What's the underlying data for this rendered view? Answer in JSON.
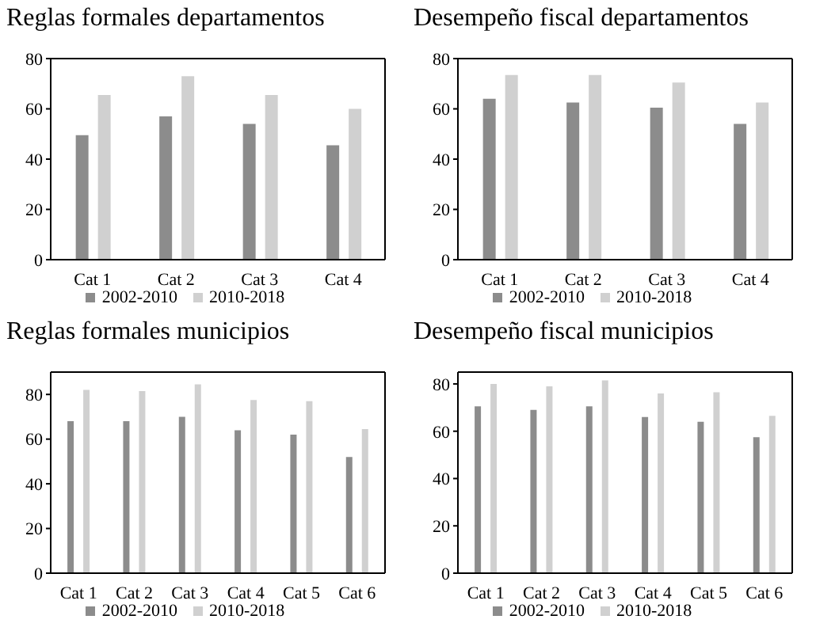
{
  "chart_data": [
    {
      "type": "bar",
      "title": "Reglas formales departamentos",
      "categories": [
        "Cat 1",
        "Cat 2",
        "Cat 3",
        "Cat 4"
      ],
      "series": [
        {
          "name": "2002-2010",
          "color": "#8c8c8c",
          "values": [
            49.5,
            57,
            54,
            45.5
          ]
        },
        {
          "name": "2010-2018",
          "color": "#d0d0d0",
          "values": [
            65.5,
            73,
            65.5,
            60
          ]
        }
      ],
      "ylim": [
        0,
        80
      ],
      "yticks": [
        0,
        20,
        40,
        60,
        80
      ],
      "grid": false,
      "legend": "bottom"
    },
    {
      "type": "bar",
      "title": "Desempeño fiscal departamentos",
      "categories": [
        "Cat 1",
        "Cat 2",
        "Cat 3",
        "Cat 4"
      ],
      "series": [
        {
          "name": "2002-2010",
          "color": "#8c8c8c",
          "values": [
            64,
            62.5,
            60.5,
            54
          ]
        },
        {
          "name": "2010-2018",
          "color": "#d0d0d0",
          "values": [
            73.5,
            73.5,
            70.5,
            62.5
          ]
        }
      ],
      "ylim": [
        0,
        80
      ],
      "yticks": [
        0,
        20,
        40,
        60,
        80
      ],
      "grid": false,
      "legend": "bottom"
    },
    {
      "type": "bar",
      "title": "Reglas formales municipios",
      "categories": [
        "Cat 1",
        "Cat 2",
        "Cat 3",
        "Cat 4",
        "Cat 5",
        "Cat 6"
      ],
      "series": [
        {
          "name": "2002-2010",
          "color": "#8c8c8c",
          "values": [
            68,
            68,
            70,
            64,
            62,
            52
          ]
        },
        {
          "name": "2010-2018",
          "color": "#d0d0d0",
          "values": [
            82,
            81.5,
            84.5,
            77.5,
            77,
            64.5
          ]
        }
      ],
      "ylim": [
        0,
        90
      ],
      "yticks": [
        0,
        20,
        40,
        60,
        80
      ],
      "grid": false,
      "legend": "bottom"
    },
    {
      "type": "bar",
      "title": "Desempeño fiscal municipios",
      "categories": [
        "Cat 1",
        "Cat 2",
        "Cat 3",
        "Cat 4",
        "Cat 5",
        "Cat 6"
      ],
      "series": [
        {
          "name": "2002-2010",
          "color": "#8c8c8c",
          "values": [
            70.5,
            69,
            70.5,
            66,
            64,
            57.5
          ]
        },
        {
          "name": "2010-2018",
          "color": "#d0d0d0",
          "values": [
            80,
            79,
            81.5,
            76,
            76.5,
            66.5
          ]
        }
      ],
      "ylim": [
        0,
        85
      ],
      "yticks": [
        0,
        20,
        40,
        60,
        80
      ],
      "grid": false,
      "legend": "bottom"
    }
  ]
}
